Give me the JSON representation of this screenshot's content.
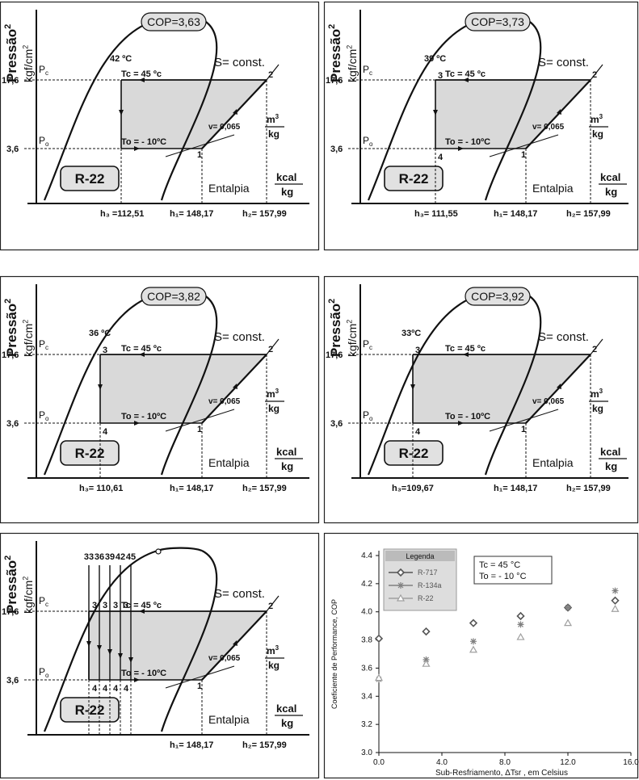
{
  "colors": {
    "grey_fill": "#d9d9d9",
    "badge_fill": "#e1e1e1",
    "line": "#111111",
    "chart_dark": "#555555",
    "chart_mid": "#808080",
    "chart_light": "#a0a0a0"
  },
  "common": {
    "y_axis_label": "Pressão",
    "y_axis_unit": "kgf/cm",
    "y_axis_unit_sup": "2",
    "s_const": "S= const.",
    "pc_label": "P",
    "pc_sub": "c",
    "po_label": "P",
    "po_sub": "o",
    "tc_label": "Tc = 45 ºc",
    "to_label": "To = - 10ºC",
    "v_label": "v= 0,065",
    "v_num": "m",
    "v_num_sup": "3",
    "v_den": "kg",
    "enthalpy": "Entalpia",
    "kcal": "kcal",
    "kg": "kg",
    "p_high": "17,6",
    "p_low": "3,6",
    "refrigerant": "R-22",
    "point_1": "1",
    "point_2": "2",
    "point_3": "3",
    "point_4": "4",
    "h1": "h₁= 148,17",
    "h2": "h₂= 157,99"
  },
  "panels": [
    {
      "cop": "COP=3,63",
      "temp": "42 ºC",
      "h3": "h₃ =112,51",
      "show34": false
    },
    {
      "cop": "COP=3,73",
      "temp": "39 ºC",
      "h3": "h₃= 111,55",
      "show34": true
    },
    {
      "cop": "COP=3,82",
      "temp": "36 ºC",
      "h3": "h₃= 110,61",
      "show34": true
    },
    {
      "cop": "COP=3,92",
      "temp": "33ºC",
      "h3": "h₃=109,67",
      "show34": true
    }
  ],
  "panel5": {
    "temps": [
      "33",
      "36",
      "39",
      "42",
      "45"
    ],
    "threes": [
      "3",
      "3",
      "3",
      "3"
    ],
    "fours": [
      "4",
      "4",
      "4",
      "4"
    ]
  },
  "chart_data": {
    "type": "scatter",
    "xlabel": "Sub-Resfriamento, ΔTsr , em  Celsius",
    "ylabel": "Coeficiente de Performance, COP",
    "xlim": [
      0,
      16
    ],
    "ylim": [
      3.0,
      4.4
    ],
    "x_ticks": [
      "0.0",
      "4.0",
      "8.0",
      "12.0",
      "16.0"
    ],
    "y_ticks": [
      "3.0",
      "3.2",
      "3.4",
      "3.6",
      "3.8",
      "4.0",
      "4.2",
      "4.4"
    ],
    "legend_title": "Legenda",
    "legend_position": "top-left",
    "annotation_tc": "Tc = 45  °C",
    "annotation_to": "To = - 10  °C",
    "series": [
      {
        "name": "R-717",
        "marker": "diamond",
        "x": [
          0,
          3,
          6,
          9,
          12,
          15
        ],
        "y": [
          3.81,
          3.86,
          3.92,
          3.97,
          4.03,
          4.08
        ]
      },
      {
        "name": "R-134a",
        "marker": "star",
        "x": [
          0,
          3,
          6,
          9,
          12,
          15
        ],
        "y": [
          3.52,
          3.66,
          3.79,
          3.91,
          4.03,
          4.15
        ]
      },
      {
        "name": "R-22",
        "marker": "triangle",
        "x": [
          0,
          3,
          6,
          9,
          12,
          15
        ],
        "y": [
          3.53,
          3.63,
          3.73,
          3.82,
          3.92,
          4.02
        ]
      }
    ]
  }
}
